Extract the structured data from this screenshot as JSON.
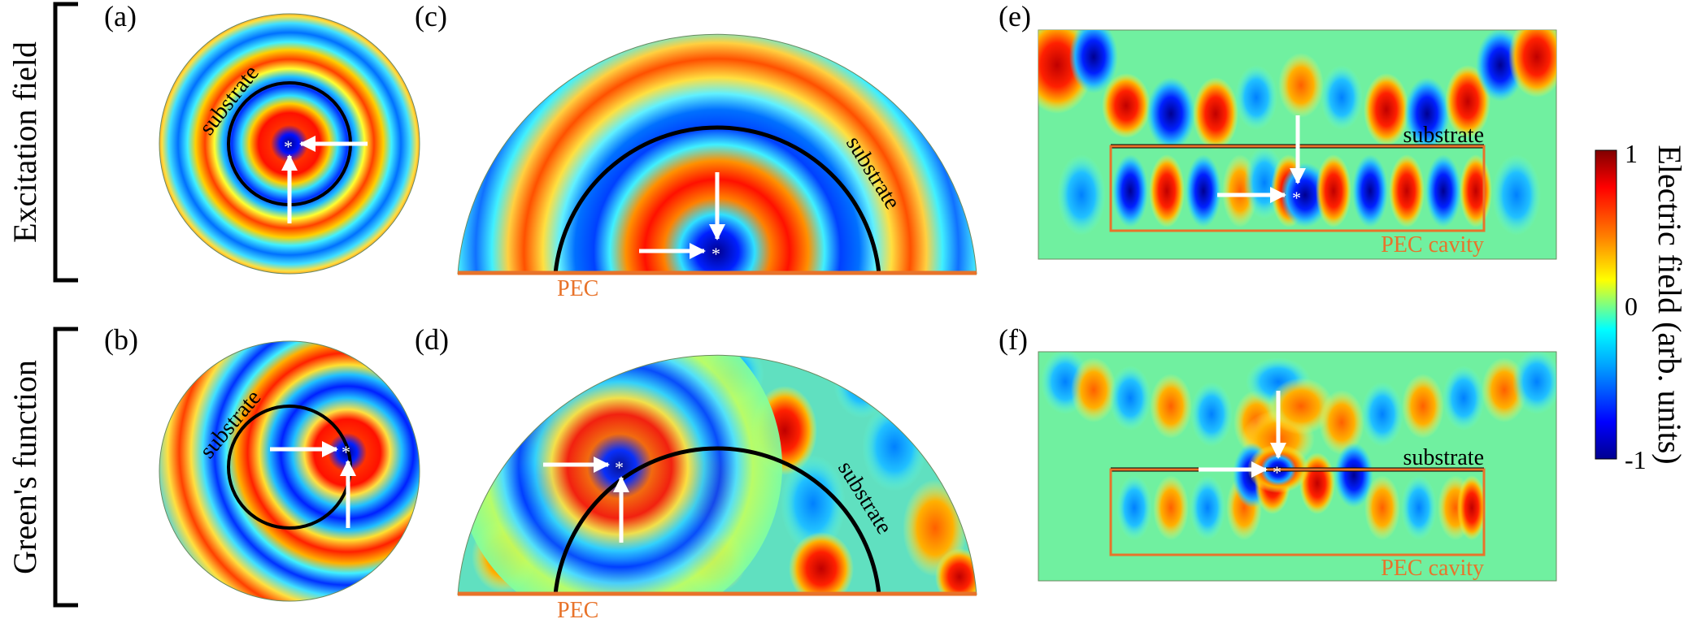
{
  "rows": {
    "top": "Excitation field",
    "bottom": "Green's function"
  },
  "panels": {
    "a": "(a)",
    "b": "(b)",
    "c": "(c)",
    "d": "(d)",
    "e": "(e)",
    "f": "(f)"
  },
  "labels": {
    "substrate": "substrate",
    "pec": "PEC",
    "pec_cavity": "PEC cavity",
    "source_marker": "*"
  },
  "colorbar": {
    "title": "Electric field (arb. units)",
    "max": "1",
    "mid": "0",
    "min": "-1",
    "colormap": [
      "#00008f",
      "#0000ff",
      "#00a0ff",
      "#00ffff",
      "#7fff7f",
      "#ffff00",
      "#ff8000",
      "#ff0000",
      "#800000"
    ]
  },
  "colors": {
    "substrate_boundary": "#000000",
    "pec": "#e8732a",
    "arrow": "#ffffff"
  }
}
